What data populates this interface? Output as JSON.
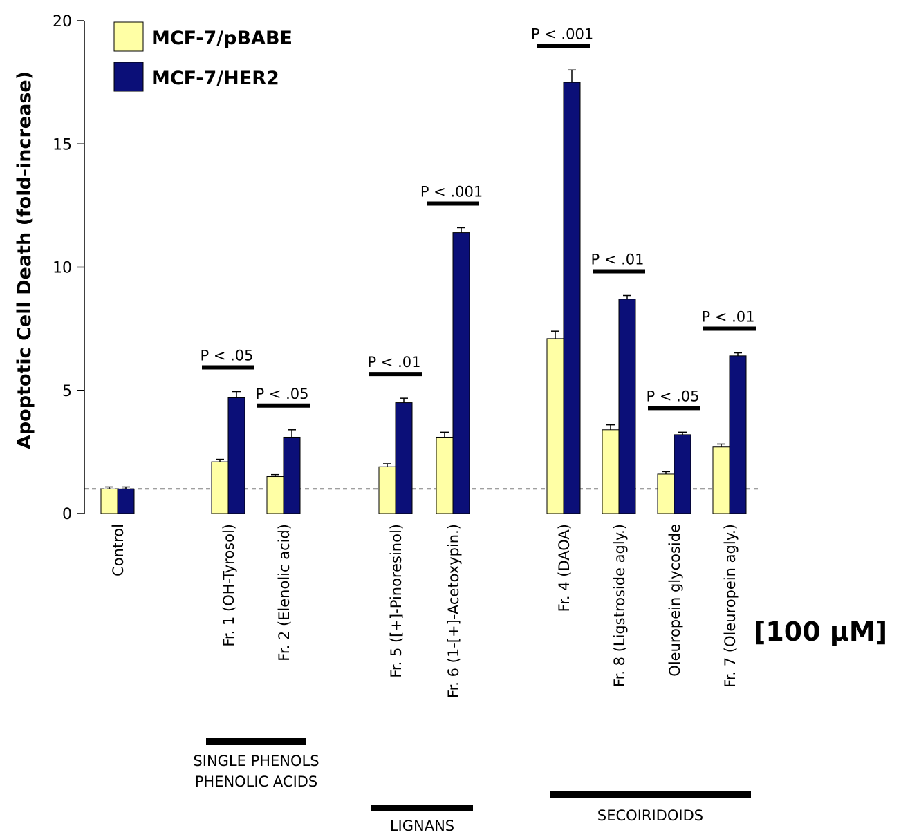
{
  "chart_data": {
    "type": "bar",
    "title": "",
    "xlabel": "",
    "ylabel": "Apoptotic Cell Death (fold-increase)",
    "ylim": [
      0,
      20
    ],
    "yticks": [
      "0",
      "5",
      "10",
      "15",
      "20"
    ],
    "baseline_value": 1,
    "legend_position": "top-left",
    "categories": [
      "Control",
      "Fr. 1 (OH-Tyrosol)",
      "Fr. 2 (Elenolic acid)",
      "Fr. 5 ([+]-Pinoresinol)",
      "Fr. 6 (1-[+]-Acetoxypin.)",
      "Fr. 4 (DAOA)",
      "Fr. 8 (Ligstroside agly.)",
      "Oleuropein glycoside",
      "Fr. 7 (Oleuropein agly.)"
    ],
    "series": [
      {
        "name": "MCF-7/pBABE",
        "color": "#FFFFA5",
        "values": [
          1.0,
          2.1,
          1.5,
          1.9,
          3.1,
          7.1,
          3.4,
          1.6,
          2.7
        ],
        "errors": [
          0.08,
          0.1,
          0.08,
          0.12,
          0.2,
          0.3,
          0.2,
          0.1,
          0.12
        ]
      },
      {
        "name": "MCF-7/HER2",
        "color": "#0B0F78",
        "values": [
          1.0,
          4.7,
          3.1,
          4.5,
          11.4,
          17.5,
          8.7,
          3.2,
          6.4
        ],
        "errors": [
          0.08,
          0.25,
          0.3,
          0.18,
          0.2,
          0.5,
          0.15,
          0.1,
          0.12
        ]
      }
    ],
    "significance": [
      "",
      "P < .05",
      "P < .05",
      "P < .01",
      "P < .001",
      "P < .001",
      "P < .01",
      "P < .05",
      "P < .01"
    ],
    "groups": [
      {
        "label_lines": [
          "SINGLE PHENOLS",
          "PHENOLIC ACIDS"
        ],
        "from": 1,
        "to": 2
      },
      {
        "label_lines": [
          "LIGNANS"
        ],
        "from": 3,
        "to": 4
      },
      {
        "label_lines": [
          "SECOIRIDOIDS"
        ],
        "from": 5,
        "to": 8
      }
    ],
    "concentration_label": "[100 μM]"
  }
}
